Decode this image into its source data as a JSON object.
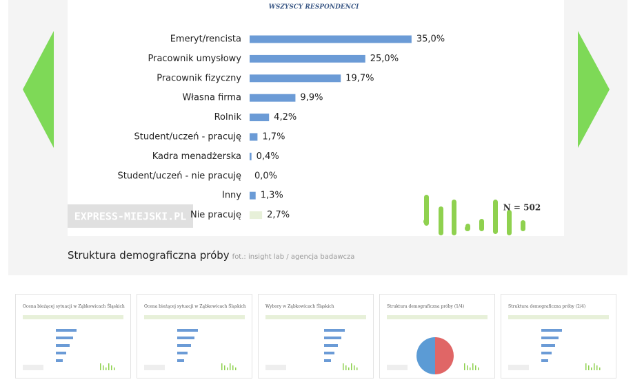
{
  "chart_data": {
    "type": "bar",
    "orientation": "horizontal",
    "title": "WSZYSCY RESPONDENCI",
    "categories": [
      "Emeryt/rencista",
      "Pracownik umysłowy",
      "Pracownik fizyczny",
      "Własna firma",
      "Rolnik",
      "Student/uczeń - pracuję",
      "Kadra menadżerska",
      "Student/uczeń - nie pracuję",
      "Inny",
      "Nie pracuję"
    ],
    "values": [
      35.0,
      25.0,
      19.7,
      9.9,
      4.2,
      1.7,
      0.4,
      0.0,
      1.3,
      2.7
    ],
    "value_labels": [
      "35,0%",
      "25,0%",
      "19,7%",
      "9,9%",
      "4,2%",
      "1,7%",
      "0,4%",
      "0,0%",
      "1,3%",
      "2,7%"
    ],
    "colors": [
      "#6b9bd6",
      "#6b9bd6",
      "#6b9bd6",
      "#6b9bd6",
      "#6b9bd6",
      "#6b9bd6",
      "#6b9bd6",
      "#6b9bd6",
      "#6b9bd6",
      "#e7f0d9"
    ],
    "annotation": "N = 502"
  },
  "watermark": "EXPRESS-MIEJSKI.PL",
  "caption": {
    "title": "Struktura demograficzna próby",
    "credit": "fot.: insight lab / agencja badawcza"
  },
  "thumbnails": [
    {
      "title": "Ocena bieżącej sytuacji w Ząbkowicach Śląskich"
    },
    {
      "title": "Ocena bieżącej sytuacji w Ząbkowicach Śląskich"
    },
    {
      "title": "Wybory w Ząbkowicach Śląskich"
    },
    {
      "title": "Struktura demograficzna próby (1/4)"
    },
    {
      "title": "Struktura demograficzna próby (2/4)"
    }
  ]
}
